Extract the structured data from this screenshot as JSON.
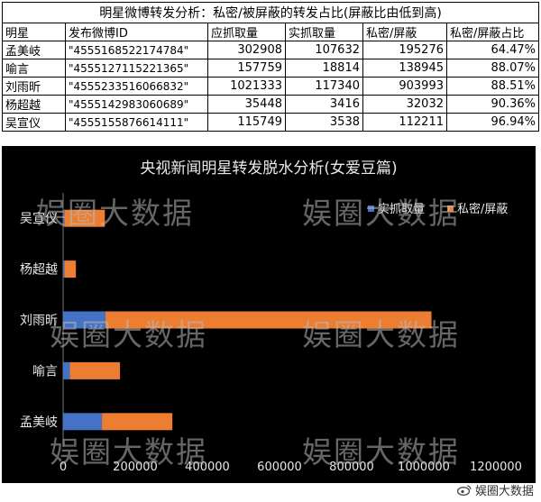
{
  "table": {
    "title": "明星微博转发分析：私密/被屏蔽的转发占比(屏蔽比由低到高)",
    "headers": [
      "明星",
      "发布微博ID",
      "应抓取量",
      "实抓取量",
      "私密/屏蔽",
      "私密/屏蔽占比"
    ],
    "rows": [
      [
        "孟美岐",
        "\"4555168522174784\"",
        "302908",
        "107632",
        "195276",
        "64.47%"
      ],
      [
        "喻言",
        "\"4555127115221365\"",
        "157759",
        "18814",
        "138945",
        "88.07%"
      ],
      [
        "刘雨昕",
        "\"4555233516066832\"",
        "1021333",
        "117340",
        "903993",
        "88.51%"
      ],
      [
        "杨超越",
        "\"4555142983060689\"",
        "35448",
        "3416",
        "32032",
        "90.36%"
      ],
      [
        "吴宣仪",
        "\"4555155876614111\"",
        "115749",
        "3538",
        "112211",
        "96.94%"
      ]
    ]
  },
  "watermark_text": "娱圈大数据",
  "footer_text": "娱圈大数据",
  "chart_data": {
    "type": "bar",
    "orientation": "horizontal",
    "stacked": true,
    "title": "央视新闻明星转发脱水分析(女爱豆篇)",
    "categories": [
      "孟美岐",
      "喻言",
      "刘雨昕",
      "杨超越",
      "吴宣仪"
    ],
    "series": [
      {
        "name": "实抓取量",
        "color": "#4472C4",
        "values": [
          107632,
          18814,
          117340,
          3416,
          3538
        ]
      },
      {
        "name": "私密/屏蔽",
        "color": "#ED7D31",
        "values": [
          195276,
          138945,
          903993,
          32032,
          112211
        ]
      }
    ],
    "xlim": [
      0,
      1200000
    ],
    "xticks": [
      0,
      200000,
      400000,
      600000,
      800000,
      1000000,
      1200000
    ],
    "legend_position": "top-right",
    "grid": false,
    "background": "#000000",
    "text_color": "#e8e8e8"
  }
}
